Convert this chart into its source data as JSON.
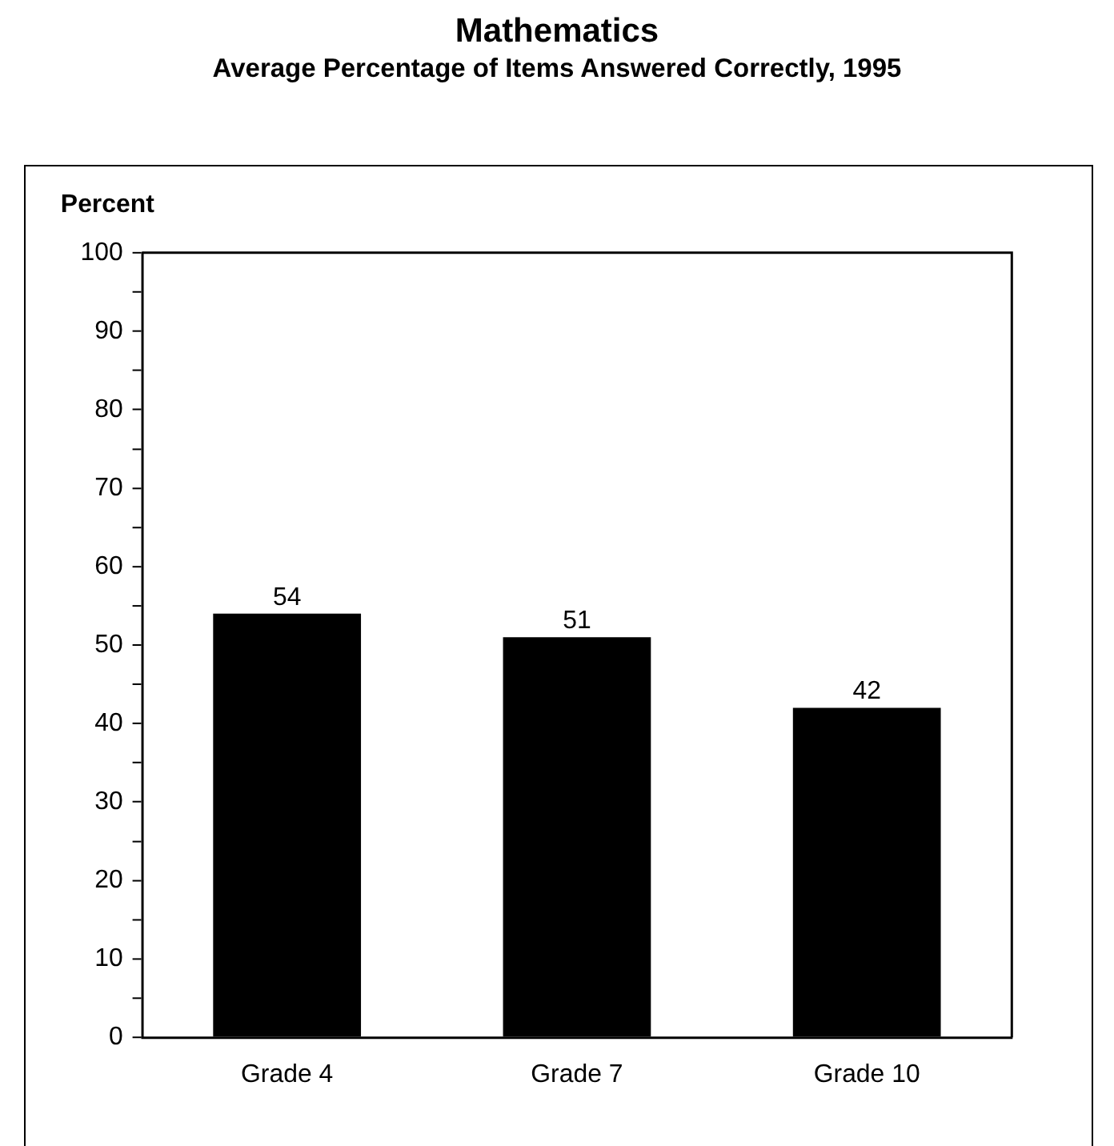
{
  "chart_data": {
    "type": "bar",
    "title": "Mathematics",
    "subtitle": "Average Percentage of Items Answered Correctly, 1995",
    "ylabel": "Percent",
    "categories": [
      "Grade 4",
      "Grade 7",
      "Grade 10"
    ],
    "values": [
      54,
      51,
      42
    ],
    "color": "#000000",
    "ylim": [
      0,
      100
    ],
    "yticks": [
      0,
      {
        "value": 5,
        "label": null
      },
      10,
      {
        "value": 15,
        "label": null
      },
      20,
      {
        "value": 25,
        "label": null
      },
      30,
      {
        "value": 35,
        "label": null
      },
      40,
      {
        "value": 45,
        "label": null
      },
      50,
      {
        "value": 55,
        "label": null
      },
      60,
      {
        "value": 65,
        "label": null
      },
      70,
      {
        "value": 75,
        "label": null
      },
      80,
      {
        "value": 85,
        "label": null
      },
      90,
      {
        "value": 95,
        "label": null
      },
      100
    ],
    "grid": false,
    "legend": false,
    "data_labels": true
  }
}
